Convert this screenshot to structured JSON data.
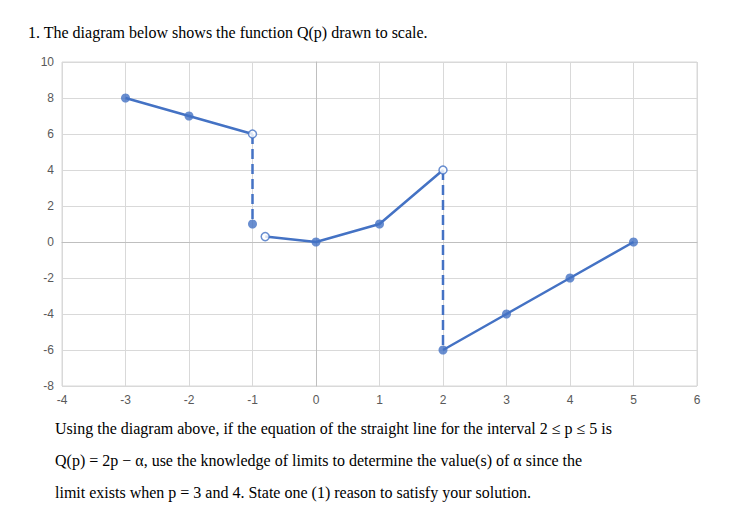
{
  "title": "1. The diagram below shows the function Q(p) drawn to scale.",
  "chart_data": {
    "type": "line",
    "xlim": [
      -4,
      6
    ],
    "xticks": [
      -4,
      -3,
      -2,
      -1,
      0,
      1,
      2,
      3,
      4,
      5,
      6
    ],
    "ylim": [
      -8,
      10
    ],
    "yticks": [
      -8,
      -6,
      -4,
      -2,
      0,
      2,
      4,
      6,
      8,
      10
    ],
    "grid": true,
    "series": [
      {
        "type": "line",
        "line_style": "solid",
        "color": "#4472c4",
        "x": [
          -3,
          -2,
          -1
        ],
        "values": [
          8,
          7,
          6
        ]
      },
      {
        "type": "line",
        "line_style": "dashed",
        "color": "#4472c4",
        "x": [
          -1,
          -1
        ],
        "values": [
          6,
          1
        ]
      },
      {
        "type": "line",
        "line_style": "solid",
        "color": "#4472c4",
        "x": [
          -0.8,
          0,
          1,
          2
        ],
        "values": [
          0.3,
          0,
          1,
          4
        ]
      },
      {
        "type": "line",
        "line_style": "dashed",
        "color": "#4472c4",
        "x": [
          2,
          2
        ],
        "values": [
          4,
          -6
        ]
      },
      {
        "type": "line",
        "line_style": "solid",
        "color": "#4472c4",
        "x": [
          2,
          3,
          4,
          5
        ],
        "values": [
          -6,
          -4,
          -2,
          0
        ]
      },
      {
        "type": "scatter",
        "marker": "circle",
        "color": "#4472c4",
        "x": [
          -3,
          -2,
          -1,
          0,
          1,
          2,
          3,
          4,
          5
        ],
        "values": [
          8,
          7,
          1,
          0,
          1,
          -6,
          -4,
          -2,
          0
        ]
      },
      {
        "type": "scatter",
        "marker": "open_circle",
        "color": "#4472c4",
        "x": [
          -1,
          -0.8,
          2
        ],
        "values": [
          6,
          0.3,
          4
        ]
      }
    ]
  },
  "question": [
    "Using the diagram above, if the equation of the straight line for the interval 2 ≤ p ≤ 5 is",
    "Q(p) = 2p − α, use the knowledge of limits to determine the value(s) of α since the",
    "limit exists when p = 3 and 4. State one (1) reason to satisfy your solution."
  ]
}
